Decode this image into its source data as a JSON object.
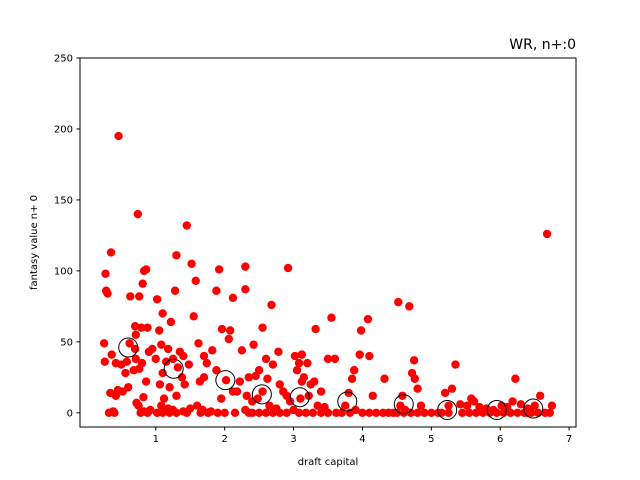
{
  "chart_data": {
    "type": "scatter",
    "title": "WR, n+:0",
    "xlabel": "draft capital",
    "ylabel": "fantasy value n+ 0",
    "xlim": [
      -0.1,
      7.1
    ],
    "ylim": [
      -10,
      250
    ],
    "xticks": [
      1,
      2,
      3,
      4,
      5,
      6,
      7
    ],
    "yticks": [
      0,
      50,
      100,
      150,
      200,
      250
    ],
    "grid": false,
    "point_color": "#ff0000",
    "mean_marker_color": "#000000",
    "series": [
      {
        "marker": "filled-circle",
        "points": [
          [
            0.46,
            195
          ],
          [
            0.35,
            113
          ],
          [
            0.27,
            98
          ],
          [
            0.28,
            86
          ],
          [
            0.3,
            84
          ],
          [
            0.25,
            49
          ],
          [
            0.26,
            36
          ],
          [
            0.36,
            41
          ],
          [
            0.42,
            35
          ],
          [
            0.45,
            16
          ],
          [
            0.5,
            34
          ],
          [
            0.56,
            28
          ],
          [
            0.6,
            18
          ],
          [
            0.62,
            49
          ],
          [
            0.34,
            14
          ],
          [
            0.38,
            1
          ],
          [
            0.32,
            0
          ],
          [
            0.4,
            0
          ],
          [
            0.42,
            12
          ],
          [
            0.52,
            15
          ],
          [
            0.58,
            36
          ],
          [
            0.74,
            140
          ],
          [
            0.63,
            82
          ],
          [
            0.7,
            61
          ],
          [
            0.71,
            55
          ],
          [
            0.76,
            82
          ],
          [
            0.79,
            60
          ],
          [
            0.83,
            100
          ],
          [
            0.86,
            101
          ],
          [
            0.81,
            91
          ],
          [
            0.88,
            60
          ],
          [
            0.9,
            43
          ],
          [
            0.8,
            35
          ],
          [
            0.76,
            31
          ],
          [
            0.71,
            38
          ],
          [
            0.68,
            30
          ],
          [
            0.72,
            7
          ],
          [
            0.75,
            5
          ],
          [
            0.83,
            1
          ],
          [
            0.86,
            22
          ],
          [
            0.92,
            2
          ],
          [
            0.78,
            0
          ],
          [
            0.88,
            0
          ],
          [
            0.95,
            45
          ],
          [
            0.7,
            45
          ],
          [
            0.82,
            11
          ],
          [
            1.45,
            132
          ],
          [
            1.3,
            111
          ],
          [
            1.52,
            105
          ],
          [
            1.02,
            80
          ],
          [
            1.28,
            86
          ],
          [
            1.1,
            70
          ],
          [
            1.22,
            64
          ],
          [
            1.55,
            68
          ],
          [
            1.05,
            58
          ],
          [
            1.18,
            45
          ],
          [
            1.35,
            43
          ],
          [
            1.4,
            40
          ],
          [
            1.08,
            48
          ],
          [
            1.0,
            38
          ],
          [
            1.15,
            36
          ],
          [
            1.25,
            38
          ],
          [
            1.32,
            32
          ],
          [
            1.48,
            34
          ],
          [
            1.38,
            25
          ],
          [
            1.42,
            20
          ],
          [
            1.1,
            28
          ],
          [
            1.06,
            20
          ],
          [
            1.2,
            18
          ],
          [
            1.12,
            10
          ],
          [
            1.3,
            12
          ],
          [
            1.18,
            3
          ],
          [
            1.25,
            2
          ],
          [
            1.4,
            1
          ],
          [
            1.02,
            0
          ],
          [
            1.1,
            0
          ],
          [
            1.3,
            0
          ],
          [
            1.45,
            0
          ],
          [
            1.2,
            0
          ],
          [
            1.08,
            5
          ],
          [
            1.5,
            3
          ],
          [
            1.58,
            93
          ],
          [
            1.88,
            86
          ],
          [
            1.92,
            101
          ],
          [
            2.12,
            81
          ],
          [
            1.62,
            49
          ],
          [
            1.7,
            40
          ],
          [
            1.82,
            44
          ],
          [
            1.96,
            59
          ],
          [
            2.08,
            58
          ],
          [
            2.06,
            52
          ],
          [
            1.74,
            35
          ],
          [
            1.64,
            22
          ],
          [
            1.7,
            25
          ],
          [
            1.88,
            30
          ],
          [
            2.02,
            23
          ],
          [
            2.12,
            15
          ],
          [
            2.18,
            15
          ],
          [
            1.6,
            5
          ],
          [
            1.68,
            2
          ],
          [
            1.8,
            1
          ],
          [
            1.9,
            0
          ],
          [
            2.0,
            0
          ],
          [
            1.95,
            10
          ],
          [
            1.76,
            0
          ],
          [
            2.15,
            0
          ],
          [
            1.65,
            0
          ],
          [
            2.3,
            103
          ],
          [
            2.3,
            87
          ],
          [
            2.55,
            60
          ],
          [
            2.42,
            48
          ],
          [
            2.25,
            44
          ],
          [
            2.68,
            76
          ],
          [
            2.92,
            102
          ],
          [
            2.78,
            43
          ],
          [
            2.6,
            38
          ],
          [
            2.5,
            30
          ],
          [
            2.45,
            26
          ],
          [
            2.35,
            25
          ],
          [
            2.7,
            34
          ],
          [
            2.62,
            24
          ],
          [
            2.22,
            22
          ],
          [
            2.55,
            15
          ],
          [
            2.48,
            10
          ],
          [
            2.32,
            12
          ],
          [
            2.4,
            8
          ],
          [
            2.8,
            20
          ],
          [
            2.85,
            15
          ],
          [
            2.9,
            12
          ],
          [
            2.95,
            8
          ],
          [
            2.3,
            2
          ],
          [
            2.4,
            0
          ],
          [
            2.5,
            0
          ],
          [
            2.6,
            0
          ],
          [
            2.7,
            0
          ],
          [
            2.8,
            0
          ],
          [
            2.9,
            0
          ],
          [
            2.35,
            0
          ],
          [
            2.65,
            5
          ],
          [
            2.75,
            3
          ],
          [
            3.02,
            40
          ],
          [
            3.12,
            41
          ],
          [
            3.08,
            35
          ],
          [
            3.2,
            35
          ],
          [
            3.05,
            30
          ],
          [
            3.15,
            25
          ],
          [
            3.25,
            20
          ],
          [
            3.32,
            59
          ],
          [
            3.55,
            67
          ],
          [
            3.5,
            38
          ],
          [
            3.6,
            38
          ],
          [
            3.3,
            22
          ],
          [
            3.22,
            12
          ],
          [
            3.1,
            10
          ],
          [
            3.35,
            5
          ],
          [
            3.45,
            4
          ],
          [
            3.0,
            2
          ],
          [
            3.08,
            0
          ],
          [
            3.18,
            0
          ],
          [
            3.28,
            0
          ],
          [
            3.4,
            0
          ],
          [
            3.5,
            0
          ],
          [
            3.62,
            0
          ],
          [
            3.7,
            0
          ],
          [
            3.12,
            22
          ],
          [
            3.4,
            15
          ],
          [
            3.98,
            58
          ],
          [
            4.08,
            66
          ],
          [
            3.96,
            41
          ],
          [
            4.1,
            40
          ],
          [
            3.88,
            30
          ],
          [
            3.85,
            24
          ],
          [
            4.32,
            24
          ],
          [
            3.8,
            14
          ],
          [
            3.75,
            5
          ],
          [
            3.9,
            2
          ],
          [
            4.0,
            0
          ],
          [
            4.1,
            0
          ],
          [
            4.2,
            0
          ],
          [
            4.3,
            0
          ],
          [
            4.38,
            0
          ],
          [
            4.45,
            0
          ],
          [
            4.15,
            12
          ],
          [
            3.82,
            0
          ],
          [
            4.52,
            78
          ],
          [
            4.68,
            75
          ],
          [
            4.75,
            37
          ],
          [
            4.72,
            28
          ],
          [
            4.76,
            24
          ],
          [
            4.8,
            17
          ],
          [
            4.85,
            5
          ],
          [
            4.58,
            12
          ],
          [
            4.62,
            2
          ],
          [
            4.5,
            0
          ],
          [
            4.6,
            0
          ],
          [
            4.7,
            0
          ],
          [
            4.8,
            0
          ],
          [
            4.9,
            0
          ],
          [
            5.0,
            0
          ],
          [
            5.1,
            0
          ],
          [
            4.55,
            5
          ],
          [
            5.35,
            34
          ],
          [
            5.2,
            14
          ],
          [
            5.3,
            17
          ],
          [
            5.42,
            6
          ],
          [
            5.52,
            5
          ],
          [
            5.62,
            8
          ],
          [
            5.58,
            10
          ],
          [
            5.7,
            4
          ],
          [
            5.8,
            3
          ],
          [
            5.9,
            2
          ],
          [
            5.15,
            0
          ],
          [
            5.25,
            0
          ],
          [
            5.45,
            0
          ],
          [
            5.55,
            0
          ],
          [
            5.65,
            0
          ],
          [
            5.75,
            0
          ],
          [
            5.85,
            0
          ],
          [
            5.95,
            0
          ],
          [
            5.25,
            5
          ],
          [
            6.02,
            5
          ],
          [
            6.1,
            4
          ],
          [
            6.18,
            8
          ],
          [
            6.22,
            24
          ],
          [
            6.3,
            6
          ],
          [
            6.4,
            3
          ],
          [
            6.5,
            5
          ],
          [
            6.58,
            12
          ],
          [
            6.68,
            126
          ],
          [
            6.75,
            5
          ],
          [
            6.05,
            0
          ],
          [
            6.15,
            0
          ],
          [
            6.25,
            0
          ],
          [
            6.35,
            0
          ],
          [
            6.45,
            0
          ],
          [
            6.55,
            0
          ],
          [
            6.65,
            0
          ],
          [
            6.72,
            0
          ],
          [
            6.4,
            0
          ]
        ]
      },
      {
        "marker": "hollow-circle",
        "points": [
          [
            0.6,
            46
          ],
          [
            1.26,
            31
          ],
          [
            2.01,
            23
          ],
          [
            2.54,
            13
          ],
          [
            3.09,
            11
          ],
          [
            3.78,
            8
          ],
          [
            4.6,
            6
          ],
          [
            5.23,
            2
          ],
          [
            5.95,
            2
          ],
          [
            6.48,
            3
          ]
        ]
      }
    ]
  }
}
